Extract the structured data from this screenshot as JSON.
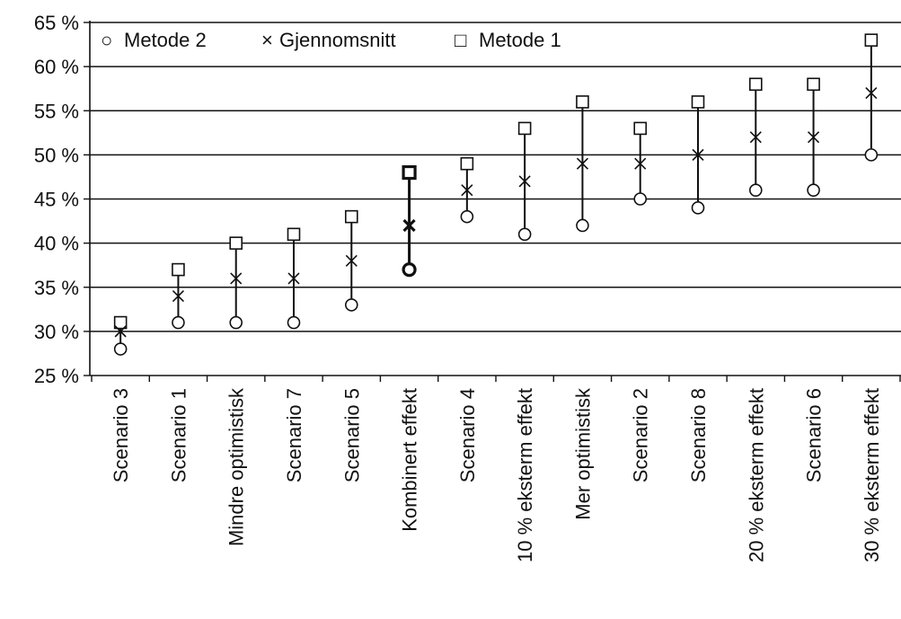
{
  "chart_data": {
    "type": "scatter",
    "title": "",
    "xlabel": "",
    "ylabel": "",
    "ylim": [
      25,
      65
    ],
    "y_tick_step": 5,
    "y_tick_suffix": " %",
    "grid": true,
    "legend_position": "top-left",
    "categories": [
      "Scenario 3",
      "Scenario 1",
      "Mindre optimistisk",
      "Scenario 7",
      "Scenario 5",
      "Kombinert effekt",
      "Scenario 4",
      "10 % eksterm effekt",
      "Mer optimistisk",
      "Scenario 2",
      "Scenario 8",
      "20 % eksterm effekt",
      "Scenario 6",
      "30 % eksterm effekt"
    ],
    "highlight_category": "Kombinert effekt",
    "series": [
      {
        "name": "Metode 2",
        "marker": "circle",
        "values": [
          28,
          31,
          31,
          31,
          33,
          37,
          43,
          41,
          42,
          45,
          44,
          46,
          46,
          50
        ]
      },
      {
        "name": "Gjennomsnitt",
        "marker": "x",
        "values": [
          30,
          34,
          36,
          36,
          38,
          42,
          46,
          47,
          49,
          49,
          50,
          52,
          52,
          57
        ]
      },
      {
        "name": "Metode 1",
        "marker": "square",
        "values": [
          31,
          37,
          40,
          41,
          43,
          48,
          49,
          53,
          56,
          53,
          56,
          58,
          58,
          63
        ]
      }
    ]
  },
  "legend": {
    "symbols": {
      "circle": "○",
      "x": "×",
      "square": "□"
    },
    "items": [
      {
        "name": "Metode 2",
        "symbol": "○"
      },
      {
        "name": "Gjennomsnitt",
        "symbol": "×"
      },
      {
        "name": "Metode 1",
        "symbol": "□"
      }
    ]
  }
}
